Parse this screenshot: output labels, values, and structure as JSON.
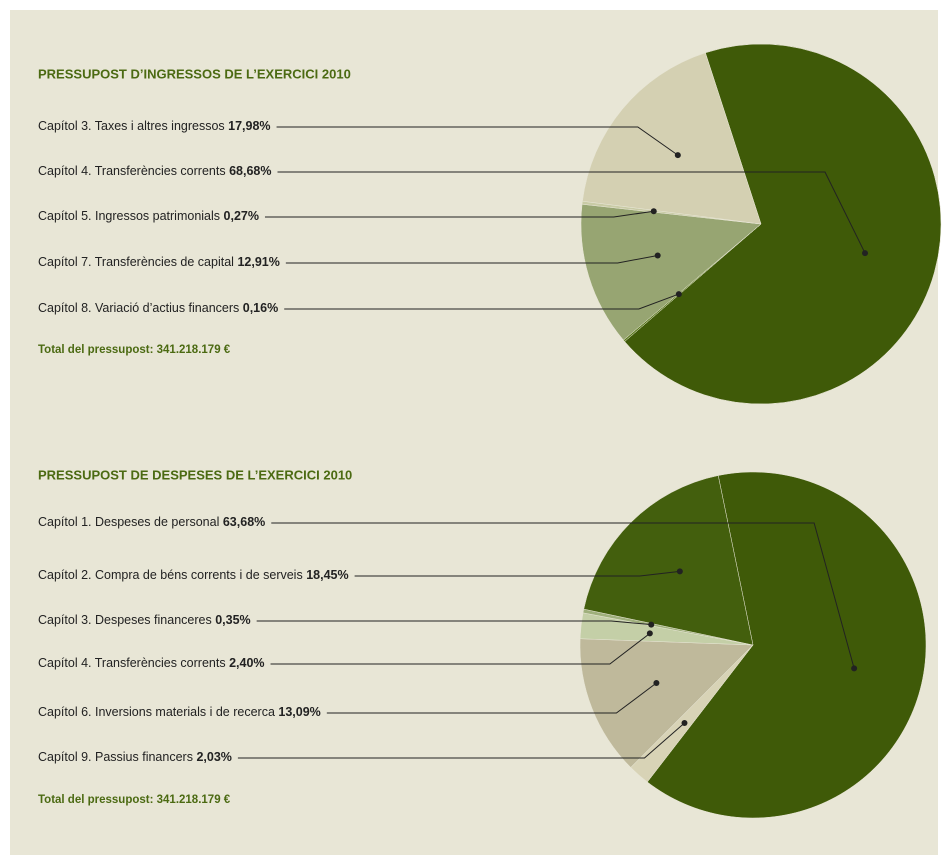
{
  "chart_data": [
    {
      "type": "pie",
      "title": "PRESSUPOST D’INGRESSOS DE L’EXERCICI 2010",
      "categories": [
        "Capítol 3. Taxes i altres ingressos",
        "Capítol 4. Transferències corrents",
        "Capítol 5. Ingressos patrimonials",
        "Capítol 7. Transferències de capital",
        "Capítol 8. Variació d’actius financers"
      ],
      "values": [
        17.98,
        68.68,
        0.27,
        12.91,
        0.16
      ],
      "value_labels": [
        "17,98%",
        "68,68%",
        "0,27%",
        "12,91%",
        "0,16%"
      ],
      "colors": [
        "#d4d0b2",
        "#3f5a08",
        "#c9cba6",
        "#97a572",
        "#5b7a1f"
      ],
      "total": "Total del pressupost: 341.218.179 €"
    },
    {
      "type": "pie",
      "title": "PRESSUPOST DE DESPESES DE L’EXERCICI 2010",
      "categories": [
        "Capítol 1. Despeses de personal",
        "Capítol 2. Compra de béns corrents i de serveis",
        "Capítol 3. Despeses financeres",
        "Capítol 4. Transferències corrents",
        "Capítol 6. Inversions materials i de recerca",
        "Capítol 9. Passius financers"
      ],
      "values": [
        63.68,
        18.45,
        0.35,
        2.4,
        13.09,
        2.03
      ],
      "value_labels": [
        "63,68%",
        "18,45%",
        "0,35%",
        "2,40%",
        "13,09%",
        "2,03%"
      ],
      "colors": [
        "#3f5a08",
        "#435f0d",
        "#9fb07c",
        "#c4cfa7",
        "#bfb99b",
        "#d8d3b6"
      ],
      "total": "Total del pressupost: 341.218.179 €"
    }
  ]
}
